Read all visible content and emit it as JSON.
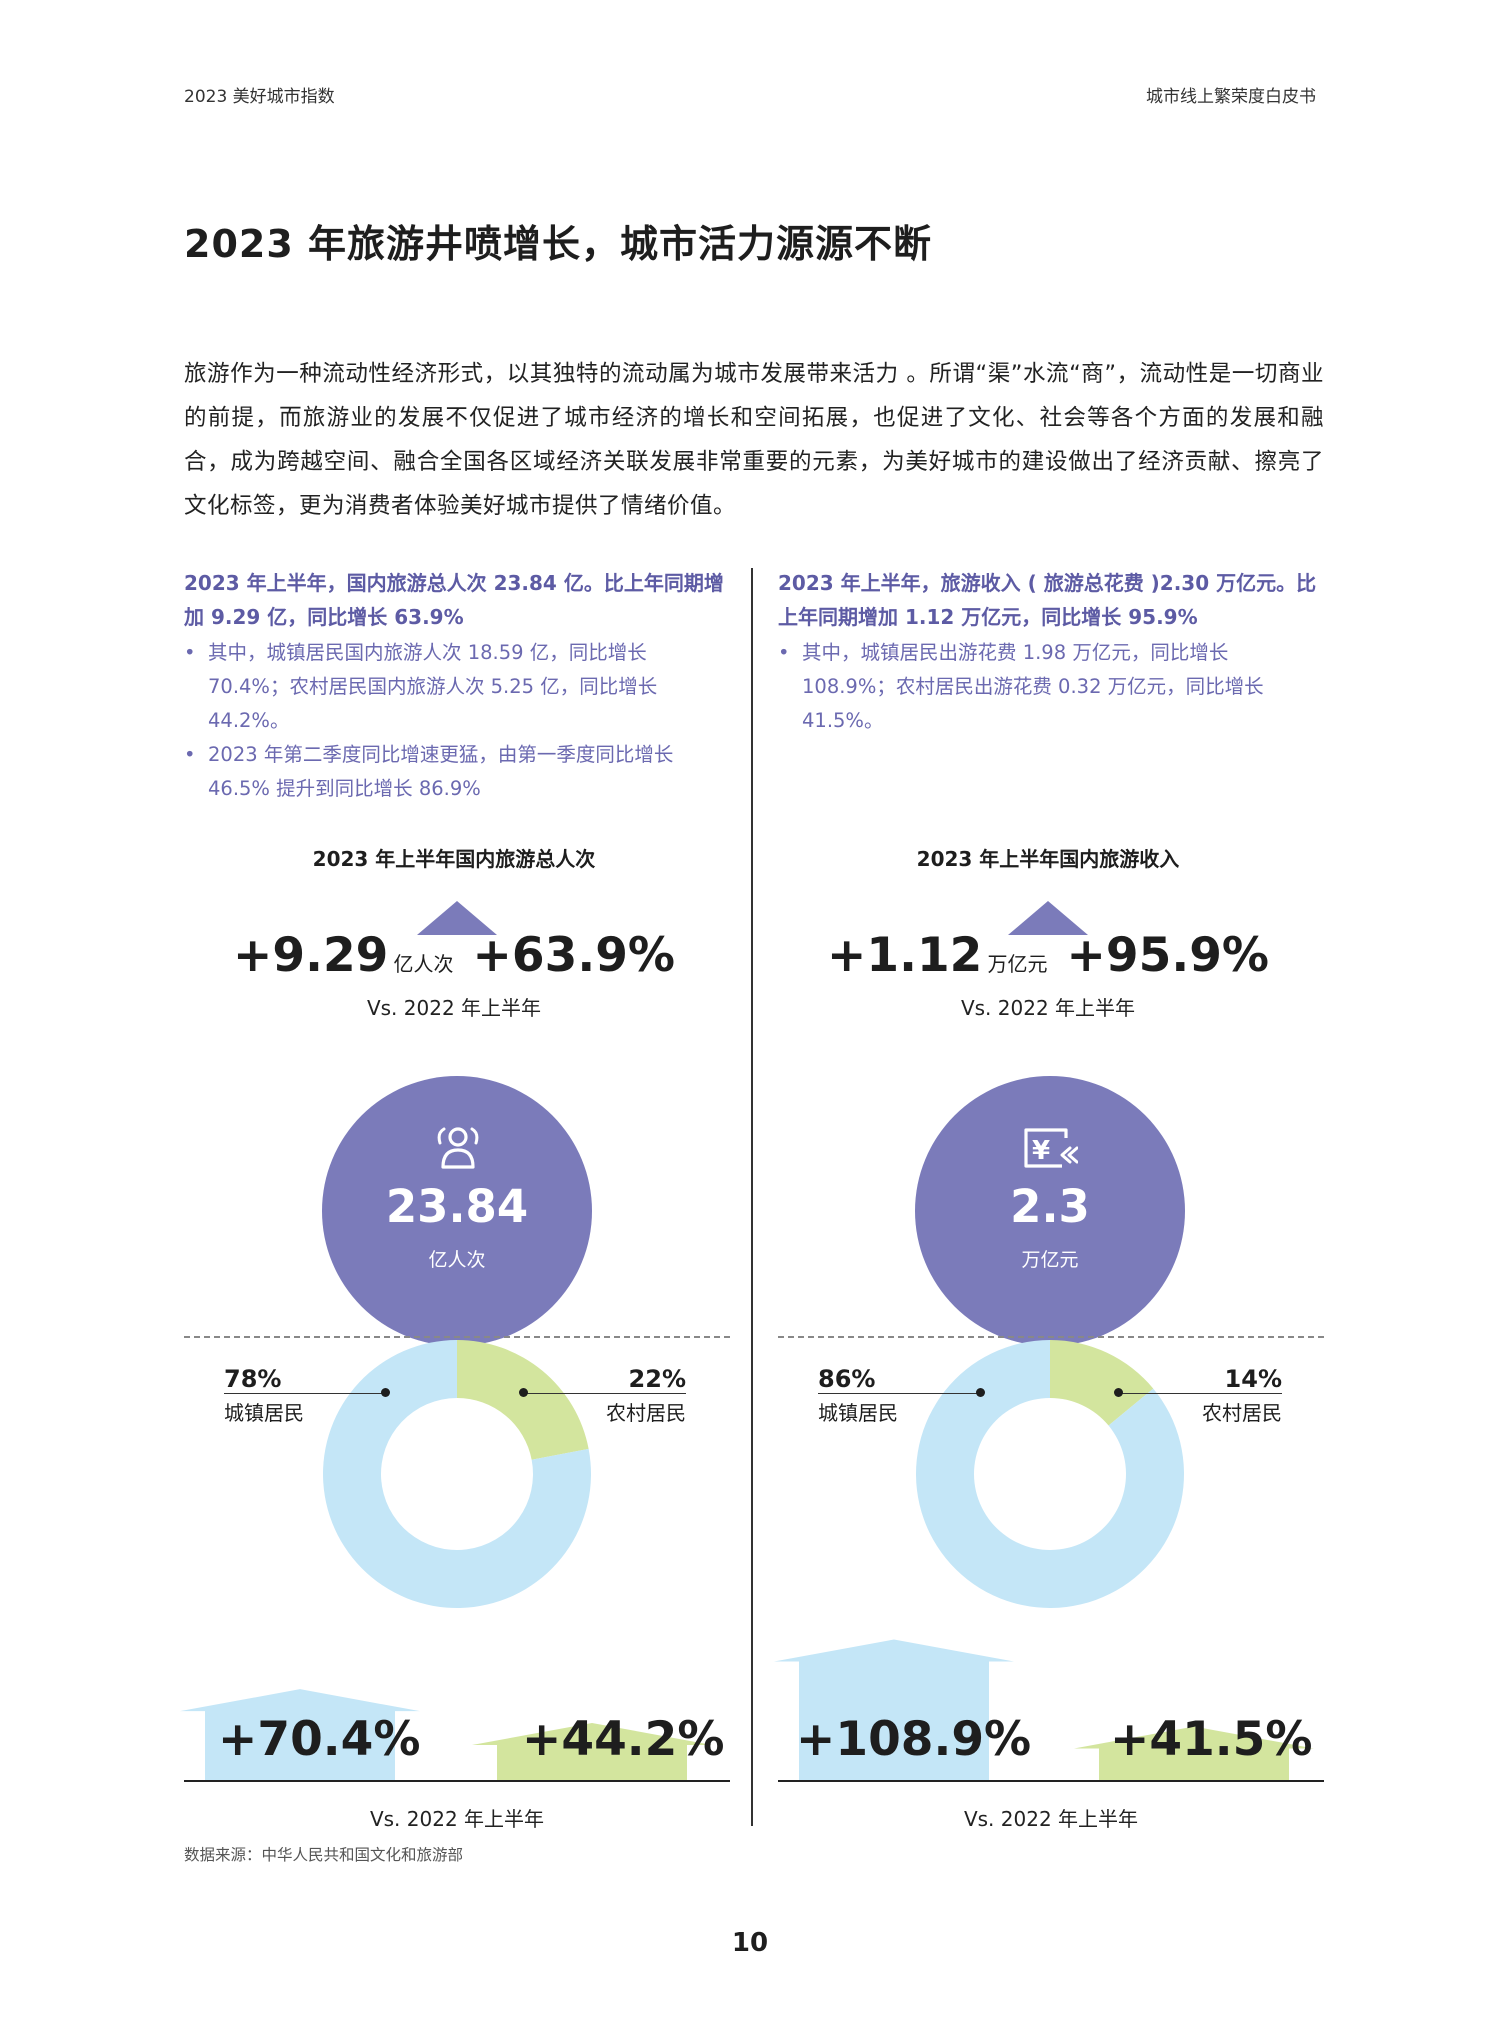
{
  "header": {
    "left": "2023 美好城市指数",
    "right": "城市线上繁荣度白皮书"
  },
  "title": "2023 年旅游井喷增长，城市活力源源不断",
  "intro": "旅游作为一种流动性经济形式，以其独特的流动属为城市发展带来活力 。所谓“渠”水流“商”，流动性是一切商业的前提，而旅游业的发展不仅促进了城市经济的增长和空间拓展，也促进了文化、社会等各个方面的发展和融合，成为跨越空间、融合全国各区域经济关联发展非常重要的元素，为美好城市的建设做出了经济贡献、擦亮了文化标签，更为消费者体验美好城市提供了情绪价值。",
  "colors": {
    "accent": "#5d5ba4",
    "circle": "#7b7bba",
    "light_blue": "#c4e6f7",
    "light_green": "#d3e59e",
    "dark": "#1e1e1e"
  },
  "left": {
    "highlight": "2023 年上半年，国内旅游总人次 23.84 亿。比上年同期增加 9.29 亿，同比增长 63.9%",
    "bullets": [
      "其中，城镇居民国内旅游人次 18.59 亿，同比增长 70.4%；农村居民国内旅游人次 5.25 亿，同比增长 44.2%。",
      "2023 年第二季度同比增速更猛，由第一季度同比增长 46.5% 提升到同比增长 86.9%"
    ],
    "chart_title": "2023 年上半年国内旅游总人次",
    "increase_value": "+9.29",
    "increase_unit": "亿人次",
    "growth": "+63.9%",
    "vs": "Vs. 2022 年上半年",
    "icon": "people-icon",
    "circle_value": "23.84",
    "circle_unit": "亿人次",
    "urban_pct": "78%",
    "urban_label": "城镇居民",
    "rural_pct": "22%",
    "rural_label": "农村居民",
    "urban_growth": "+70.4%",
    "rural_growth": "+44.2%",
    "vs_bottom": "Vs. 2022 年上半年"
  },
  "right": {
    "highlight": "2023 年上半年，旅游收入 ( 旅游总花费 )2.30 万亿元。比上年同期增加 1.12 万亿元，同比增长 95.9%",
    "bullets": [
      "其中，城镇居民出游花费 1.98 万亿元，同比增长 108.9%；农村居民出游花费 0.32 万亿元，同比增长 41.5%。"
    ],
    "chart_title": "2023 年上半年国内旅游收入",
    "increase_value": "+1.12",
    "increase_unit": "万亿元",
    "growth": "+95.9%",
    "vs": "Vs. 2022 年上半年",
    "icon": "yen-card-icon",
    "circle_value": "2.3",
    "circle_unit": "万亿元",
    "urban_pct": "86%",
    "urban_label": "城镇居民",
    "rural_pct": "14%",
    "rural_label": "农村居民",
    "urban_growth": "+108.9%",
    "rural_growth": "+41.5%",
    "vs_bottom": "Vs. 2022 年上半年"
  },
  "chart_data": [
    {
      "type": "pie",
      "title": "2023 年上半年国内旅游总人次",
      "categories": [
        "城镇居民",
        "农村居民"
      ],
      "values": [
        78,
        22
      ]
    },
    {
      "type": "pie",
      "title": "2023 年上半年国内旅游收入",
      "categories": [
        "城镇居民",
        "农村居民"
      ],
      "values": [
        86,
        14
      ]
    },
    {
      "type": "bar",
      "title": "2023 年上半年国内旅游总人次",
      "categories": [
        "城镇居民",
        "农村居民"
      ],
      "values": [
        70.4,
        44.2
      ]
    },
    {
      "type": "bar",
      "title": "2023 年上半年国内旅游收入",
      "categories": [
        "城镇居民",
        "农村居民"
      ],
      "values": [
        108.9,
        41.5
      ]
    }
  ],
  "source": "数据来源：中华人民共和国文化和旅游部",
  "page_number": "10"
}
